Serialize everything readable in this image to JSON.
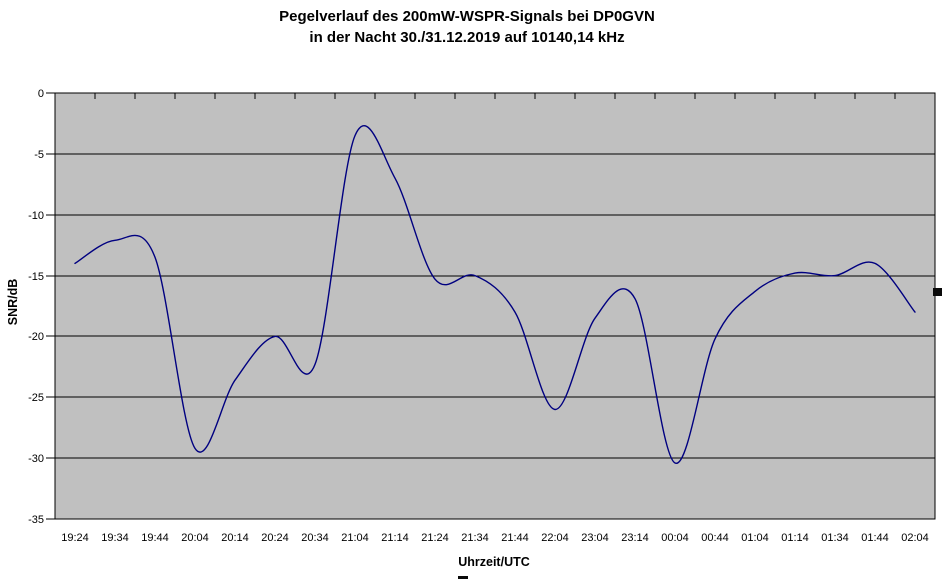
{
  "title": {
    "line1": "Pegelverlauf des 200mW-WSPR-Signals bei DP0GVN",
    "line2": "in der Nacht 30./31.12.2019 auf 10140,14 kHz"
  },
  "colors": {
    "background": "#ffffff",
    "plot_background": "#c0c0c0",
    "gridline": "#000000",
    "series_line": "#000080",
    "text": "#000000",
    "legend_marker": "#0a0a0a"
  },
  "chart_data": {
    "type": "line",
    "smoothed": true,
    "title": "Pegelverlauf des 200mW-WSPR-Signals bei DP0GVN in der Nacht 30./31.12.2019 auf 10140,14 kHz",
    "xlabel": "Uhrzeit/UTC",
    "ylabel": "SNR/dB",
    "categories": [
      "19:24",
      "19:34",
      "19:44",
      "20:04",
      "20:14",
      "20:24",
      "20:34",
      "21:04",
      "21:14",
      "21:24",
      "21:34",
      "21:44",
      "22:04",
      "23:04",
      "23:14",
      "00:04",
      "00:44",
      "01:04",
      "01:14",
      "01:34",
      "01:44",
      "02:04"
    ],
    "values": [
      -14.0,
      -12.1,
      -13.5,
      -29.2,
      -23.6,
      -20.0,
      -22.3,
      -3.5,
      -7.0,
      -15.3,
      -15.0,
      -18.0,
      -26.0,
      -18.5,
      -16.9,
      -30.4,
      -20.2,
      -16.3,
      -14.8,
      -15.0,
      -14.0,
      -18.0
    ],
    "ylim": [
      0,
      -35
    ],
    "yticks": [
      0,
      -5,
      -10,
      -15,
      -20,
      -25,
      -30,
      -35
    ],
    "grid": "horizontal",
    "legend_position": "right-cut-off"
  }
}
